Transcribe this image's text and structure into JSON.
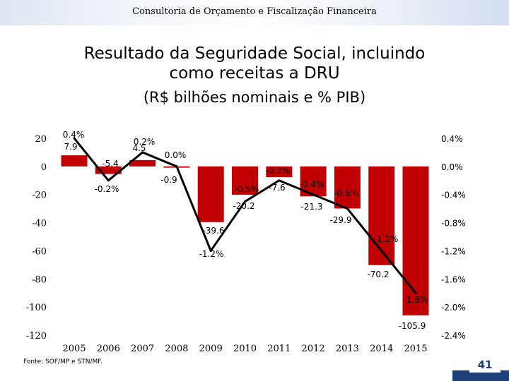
{
  "header": {
    "text": "Consultoria de Orçamento e Fiscalização Financeira"
  },
  "chart_data": {
    "type": "bar",
    "title": "Resultado da Seguridade Social, incluindo",
    "title_line2": "como receitas a DRU",
    "subtitle": "(R$ bilhões nominais e % PIB)",
    "xlabel": "",
    "ylabel": "",
    "categories": [
      "2005",
      "2006",
      "2007",
      "2008",
      "2009",
      "2010",
      "2011",
      "2012",
      "2013",
      "2014",
      "2015"
    ],
    "bars": {
      "values": [
        7.9,
        -5.4,
        4.5,
        -0.9,
        -39.6,
        -20.2,
        -7.6,
        -21.3,
        -29.9,
        -70.2,
        -105.9
      ],
      "labels": [
        "7.9",
        "-5.4",
        "4.5",
        "-0.9",
        "-39.6",
        "-20.2",
        "-7.6",
        "-21.3",
        "-29.9",
        "-70.2",
        "-105.9"
      ]
    },
    "line": {
      "values": [
        0.4,
        -0.2,
        0.2,
        0.0,
        -1.2,
        -0.5,
        -0.2,
        -0.4,
        -0.6,
        -1.2,
        -1.8
      ],
      "labels": [
        "0.4%",
        "-0.2%",
        "0.2%",
        "0.0%",
        "-1.2%",
        "-0.5%",
        "-0.2%",
        "-0.4%",
        "-0.6%",
        "-1.2%",
        "-1.8%"
      ]
    },
    "y_left": {
      "min": -120,
      "max": 20,
      "ticks": [
        20,
        0,
        -20,
        -40,
        -60,
        -80,
        -100,
        -120
      ],
      "tick_labels": [
        "20",
        "0",
        "-20",
        "-40",
        "-60",
        "-80",
        "-100",
        "-120"
      ]
    },
    "y_right": {
      "min": -2.4,
      "max": 0.4,
      "ticks": [
        0.4,
        0.0,
        -0.4,
        -0.8,
        -1.2,
        -1.6,
        -2.0,
        -2.4
      ],
      "tick_labels": [
        "0.4%",
        "0.0%",
        "-0.4%",
        "-0.8%",
        "-1.2%",
        "-1.6%",
        "-2.0%",
        "-2.4%"
      ]
    },
    "grid": false,
    "colors": {
      "bar": "#c00000",
      "line": "#000000"
    }
  },
  "footer": {
    "source": "Fonte: SOF/MP e STN/MF."
  },
  "page_number": "41"
}
